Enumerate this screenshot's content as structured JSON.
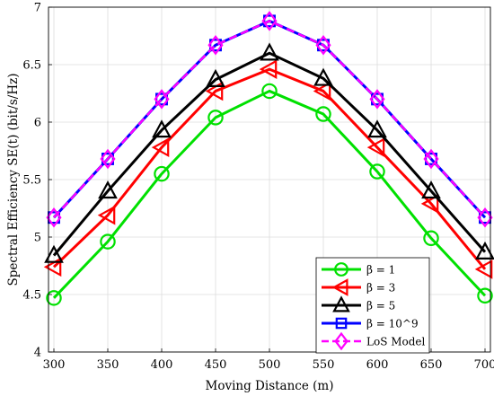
{
  "chart_data": {
    "type": "line",
    "xlabel": "Moving Distance (m)",
    "ylabel": "Spectral Efficiency SE(t) (bit/s/Hz)",
    "x": [
      300,
      350,
      400,
      450,
      500,
      550,
      600,
      650,
      700
    ],
    "xlim": [
      295,
      705
    ],
    "ylim": [
      4,
      7
    ],
    "xticks": [
      "300",
      "350",
      "400",
      "450",
      "500",
      "550",
      "600",
      "650",
      "700"
    ],
    "yticks": [
      "4",
      "4.5",
      "5",
      "5.5",
      "6",
      "6.5",
      "7"
    ],
    "grid": true,
    "legend_position": "lower-right",
    "series": [
      {
        "name": "β = 1",
        "color": "#00e000",
        "marker": "circle",
        "dashed": false,
        "values": [
          4.47,
          4.96,
          5.55,
          6.04,
          6.27,
          6.07,
          5.57,
          4.99,
          4.49
        ]
      },
      {
        "name": "β = 3",
        "color": "#ff0000",
        "marker": "triangle-left",
        "dashed": false,
        "values": [
          4.74,
          5.19,
          5.78,
          6.27,
          6.46,
          6.27,
          5.78,
          5.29,
          4.72
        ]
      },
      {
        "name": "β = 5",
        "color": "#000000",
        "marker": "triangle-up",
        "dashed": false,
        "values": [
          4.84,
          5.4,
          5.93,
          6.37,
          6.6,
          6.38,
          5.93,
          5.4,
          4.87
        ]
      },
      {
        "name": "β = 10^9",
        "color": "#0000ff",
        "marker": "square",
        "dashed": false,
        "values": [
          5.17,
          5.68,
          6.2,
          6.67,
          6.88,
          6.67,
          6.2,
          5.68,
          5.17
        ]
      },
      {
        "name": "LoS Model",
        "color": "#ff00ff",
        "marker": "diamond",
        "dashed": true,
        "values": [
          5.17,
          5.68,
          6.2,
          6.67,
          6.88,
          6.67,
          6.2,
          5.68,
          5.17
        ]
      }
    ]
  }
}
